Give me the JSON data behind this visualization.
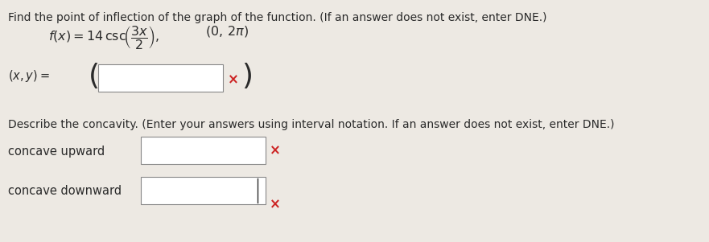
{
  "title_line": "Find the point of inflection of the graph of the function. (If an answer does not exist, enter DNE.)",
  "concavity_title": "Describe the concavity. (Enter your answers using interval notation. If an answer does not exist, enter DNE.)",
  "concave_upward_label": "concave upward",
  "concave_downward_label": "concave downward",
  "bg_color": "#ede9e3",
  "text_color": "#2a2a2a",
  "box_color": "#ffffff",
  "box_border": "#888888",
  "x_mark_color": "#cc2222",
  "font_size_title": 10.0,
  "font_size_body": 10.5,
  "font_size_math": 11.5
}
